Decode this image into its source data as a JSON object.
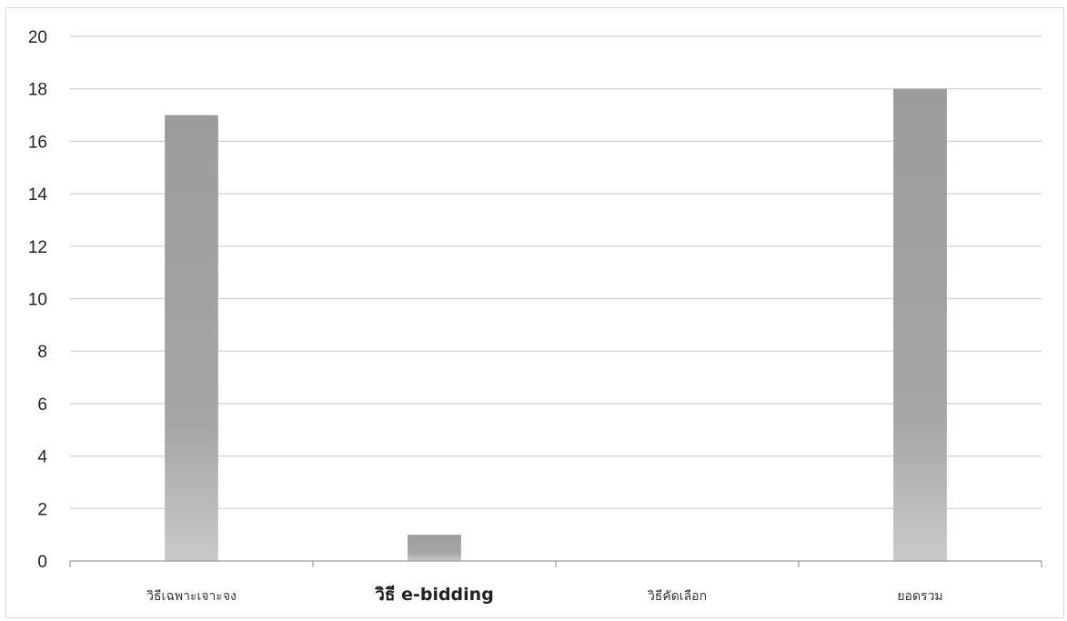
{
  "chart_data": {
    "type": "bar",
    "categories": [
      "วิธีเฉพาะเจาะจง",
      "วิธี e-bidding",
      "วิธีคัดเลือก",
      "ยอดรวม"
    ],
    "values": [
      17,
      1,
      0,
      18
    ],
    "title": "",
    "xlabel": "",
    "ylabel": "",
    "ylim": [
      0,
      20
    ],
    "yticks": [
      0,
      2,
      4,
      6,
      8,
      10,
      12,
      14,
      16,
      18,
      20
    ],
    "grid": true,
    "legend": "none",
    "colors": {
      "bar_top": "#9c9c9c",
      "bar_bottom": "#c9c9c9",
      "grid": "#cfcfcf"
    }
  }
}
